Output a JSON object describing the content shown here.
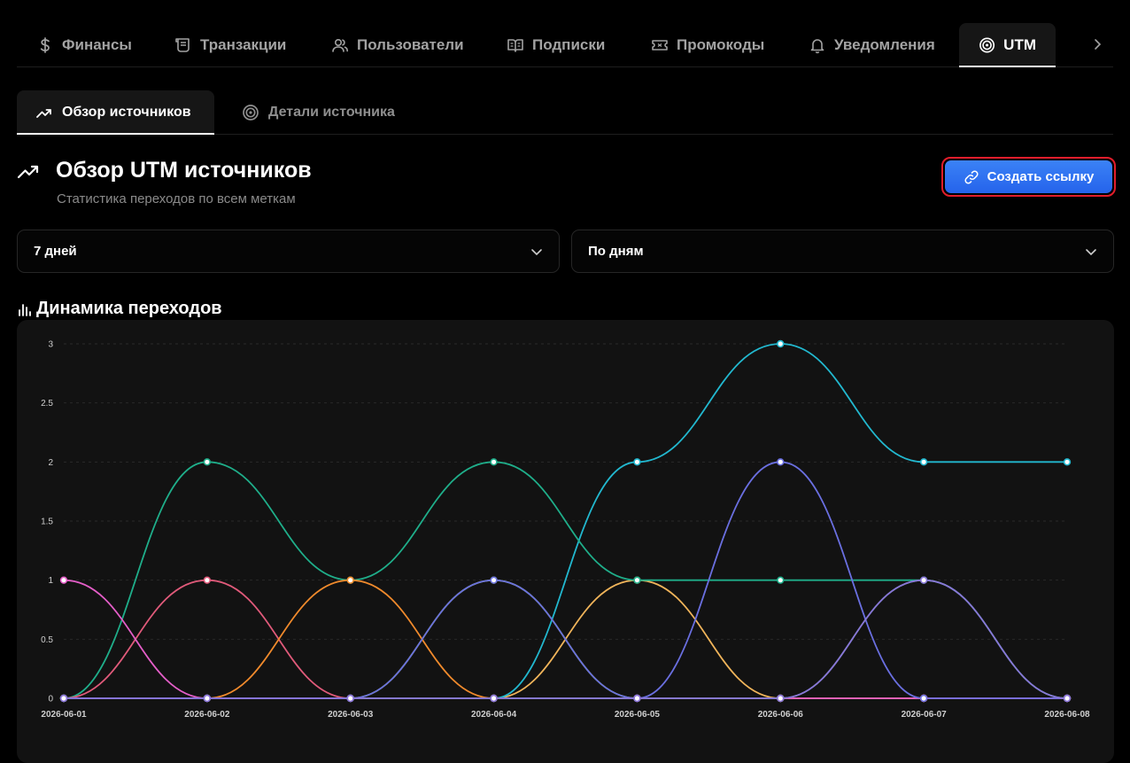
{
  "top_tabs": [
    {
      "label": "Финансы",
      "icon": "dollar-icon"
    },
    {
      "label": "Транзакции",
      "icon": "receipt-icon"
    },
    {
      "label": "Пользователи",
      "icon": "users-icon"
    },
    {
      "label": "Подписки",
      "icon": "book-icon"
    },
    {
      "label": "Промокоды",
      "icon": "ticket-icon"
    },
    {
      "label": "Уведомления",
      "icon": "bell-icon"
    },
    {
      "label": "UTM",
      "icon": "target-icon",
      "active": true
    }
  ],
  "sub_tabs": [
    {
      "label": "Обзор источников",
      "icon": "trending-up-icon",
      "active": true
    },
    {
      "label": "Детали источника",
      "icon": "target-icon"
    }
  ],
  "header": {
    "title": "Обзор UTM источников",
    "subtitle": "Статистика переходов по всем меткам",
    "create_button": "Создать ссылку"
  },
  "filters": {
    "period": "7 дней",
    "grouping": "По дням"
  },
  "chart_section_title": "Динамика переходов",
  "colors": {
    "accent": "#2f6ff0",
    "highlight_border": "#e11d2a",
    "background": "#000000",
    "card": "#121212"
  },
  "chart_data": {
    "type": "line",
    "x": [
      "2026-06-01",
      "2026-06-02",
      "2026-06-03",
      "2026-06-04",
      "2026-06-05",
      "2026-06-06",
      "2026-06-07",
      "2026-06-08"
    ],
    "yticks": [
      "0",
      "0.5",
      "1",
      "1.5",
      "2",
      "2.5",
      "3"
    ],
    "ylim": [
      0,
      3
    ],
    "grid": true,
    "series": [
      {
        "color": "#a3e635",
        "values": [
          0,
          0,
          0,
          1,
          0,
          0,
          0,
          0
        ]
      },
      {
        "color": "#f0b45a",
        "values": [
          0,
          0,
          0,
          0,
          1,
          0,
          0,
          0
        ]
      },
      {
        "color": "#22b8cf",
        "values": [
          0,
          0,
          0,
          0,
          2,
          3,
          2,
          2
        ]
      },
      {
        "color": "#1fae8a",
        "values": [
          0,
          2,
          1,
          2,
          1,
          1,
          1,
          0
        ]
      },
      {
        "color": "#e05a7a",
        "values": [
          0,
          1,
          0,
          0,
          0,
          0,
          0,
          0
        ]
      },
      {
        "color": "#f08a2c",
        "values": [
          0,
          0,
          1,
          0,
          0,
          0,
          0,
          0
        ]
      },
      {
        "color": "#e45ec8",
        "values": [
          1,
          0,
          0,
          0,
          0,
          0,
          0,
          0
        ]
      },
      {
        "color": "#34b07a",
        "values": [
          0,
          0,
          0,
          0,
          0,
          0,
          1,
          0
        ]
      },
      {
        "color": "#6a6fe0",
        "values": [
          0,
          0,
          0,
          1,
          0,
          2,
          0,
          0
        ]
      },
      {
        "color": "#8b73d8",
        "values": [
          0,
          0,
          0,
          0,
          0,
          0,
          1,
          0
        ]
      }
    ]
  }
}
